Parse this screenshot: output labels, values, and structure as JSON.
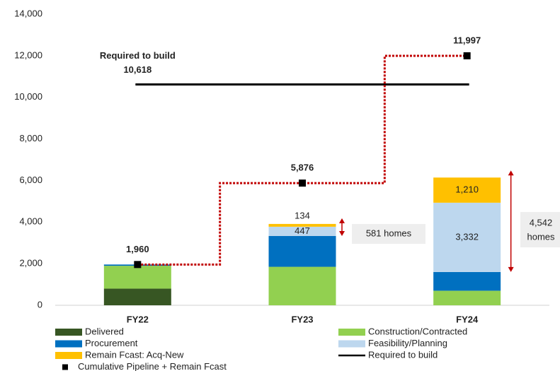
{
  "chart_data": {
    "type": "stacked-bar",
    "categories": [
      "FY22",
      "FY23",
      "FY24"
    ],
    "ylim": [
      0,
      14000
    ],
    "yticks": [
      0,
      {
        "value": 2000,
        "label": "2,000"
      },
      {
        "value": 4000,
        "label": "4,000"
      },
      {
        "value": 6000,
        "label": "6,000"
      },
      {
        "value": 8000,
        "label": "8,000"
      },
      {
        "value": 10000,
        "label": "10,000"
      },
      {
        "value": 12000,
        "label": "12,000"
      },
      {
        "value": 14000,
        "label": "14,000"
      }
    ],
    "grid": false,
    "series": [
      {
        "name": "Delivered",
        "color": "#375623",
        "values": [
          800,
          null,
          null
        ]
      },
      {
        "name": "Construction/Contracted",
        "color": "#92d050",
        "values": [
          1100,
          1850,
          700
        ]
      },
      {
        "name": "Procurement",
        "color": "#0070c0",
        "values": [
          60,
          1480,
          900
        ]
      },
      {
        "name": "Feasibility/Planning",
        "color": "#bdd7ee",
        "values": [
          null,
          447,
          3332
        ],
        "value_labels": [
          null,
          "447",
          "3,332"
        ]
      },
      {
        "name": "Remain Fcast: Acq-New",
        "color": "#ffc000",
        "values": [
          null,
          134,
          1210
        ],
        "value_labels": [
          null,
          "134",
          "1,210"
        ]
      }
    ],
    "reference": {
      "name": "Required to build",
      "value": 10618,
      "value_label": "10,618",
      "color": "#000000"
    },
    "cumulative": {
      "name": "Cumulative Pipeline + Remain Fcast",
      "values": [
        1960,
        5876,
        11997
      ],
      "value_labels": [
        "1,960",
        "5,876",
        "11,997"
      ],
      "color": "#000000",
      "line_color": "#c00000"
    },
    "annotations": [
      {
        "text": "581 homes"
      },
      {
        "lines": [
          "4,542",
          "homes"
        ]
      }
    ]
  }
}
